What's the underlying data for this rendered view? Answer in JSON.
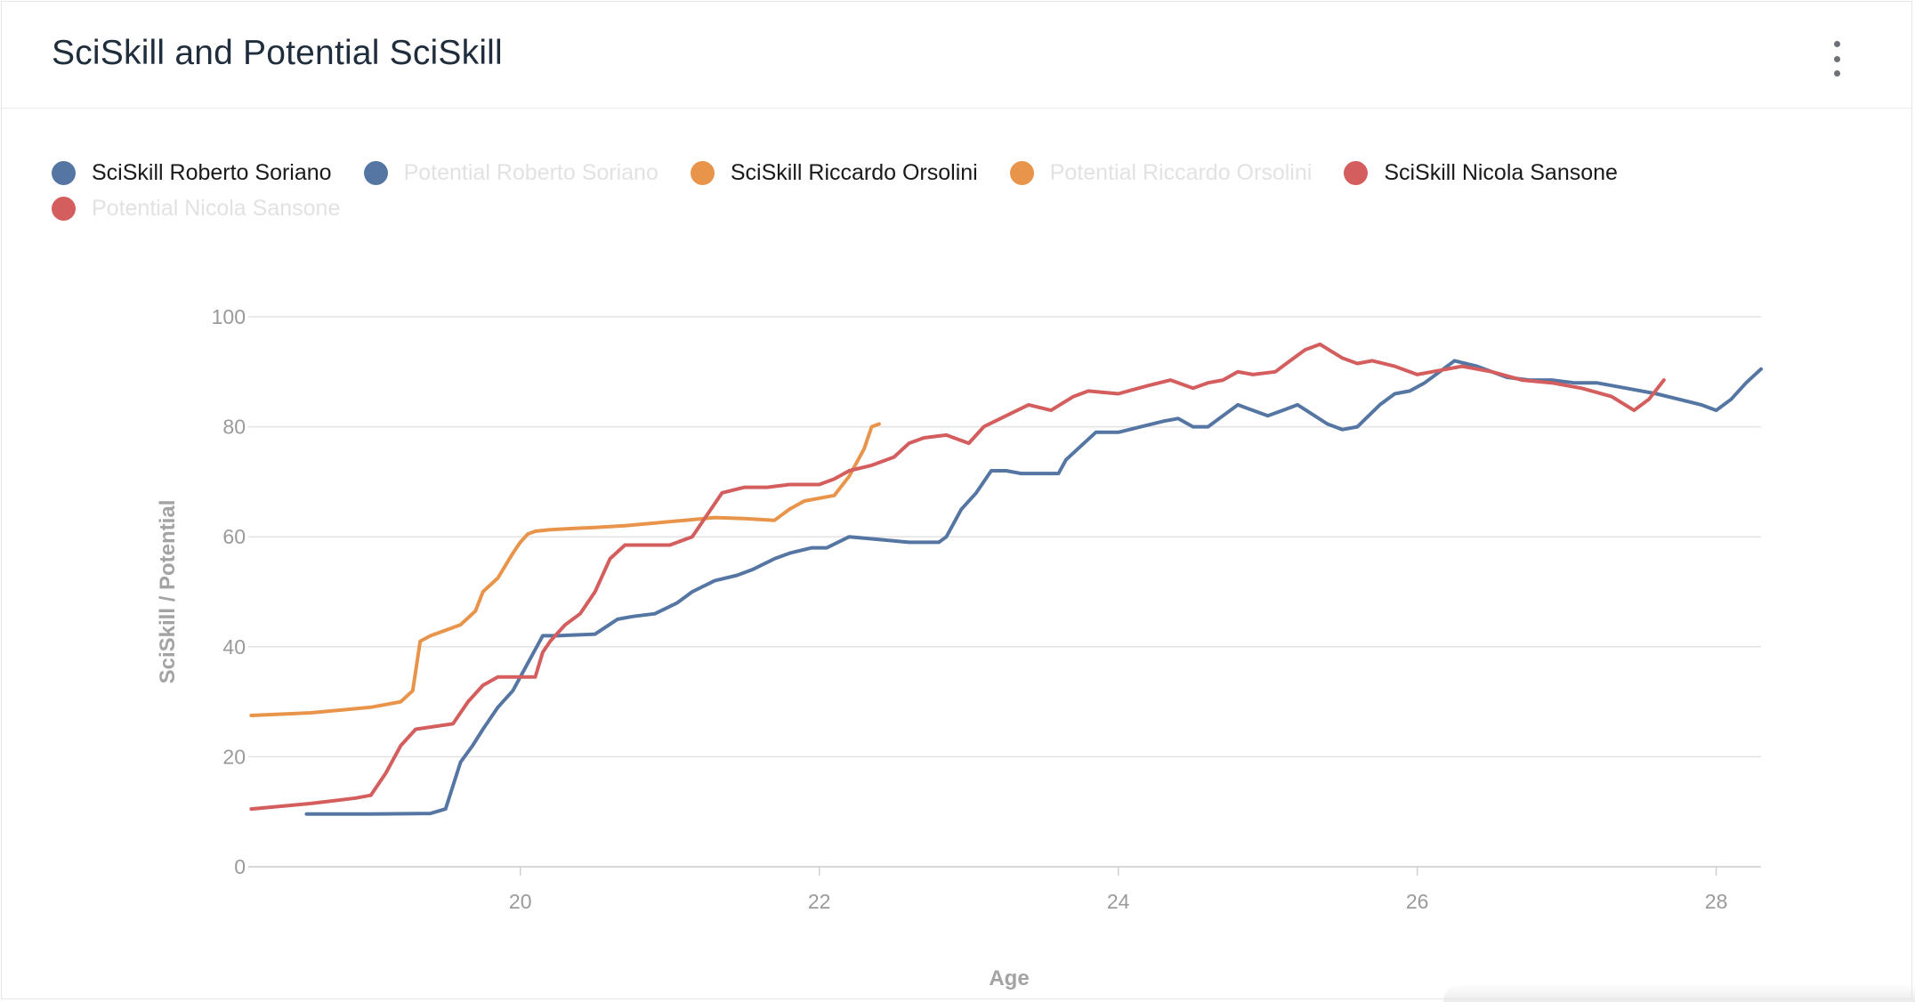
{
  "title": "SciSkill and Potential SciSkill",
  "menu_icon": "more-vertical-icon",
  "legend": [
    {
      "label": "SciSkill Roberto Soriano",
      "color": "#5576a3",
      "visible": true
    },
    {
      "label": "Potential Roberto Soriano",
      "color": "#5576a3",
      "visible": false
    },
    {
      "label": "SciSkill Riccardo Orsolini",
      "color": "#e8944a",
      "visible": true
    },
    {
      "label": "Potential Riccardo Orsolini",
      "color": "#e8944a",
      "visible": false
    },
    {
      "label": "SciSkill Nicola Sansone",
      "color": "#d45d5d",
      "visible": true
    },
    {
      "label": "Potential Nicola Sansone",
      "color": "#d45d5d",
      "visible": false
    }
  ],
  "chart_data": {
    "type": "line",
    "xlabel": "Age",
    "ylabel": "SciSkill / Potential",
    "xlim": [
      18.18,
      28.3
    ],
    "ylim": [
      0,
      100
    ],
    "x_ticks": [
      20,
      22,
      24,
      26,
      28
    ],
    "y_ticks": [
      0,
      20,
      40,
      60,
      80,
      100
    ],
    "grid": "horizontal",
    "legend_position": "top-left",
    "series": [
      {
        "name": "SciSkill Roberto Soriano",
        "color": "#5576a3",
        "x": [
          18.57,
          19.0,
          19.4,
          19.5,
          19.6,
          19.68,
          19.75,
          19.85,
          19.95,
          20.05,
          20.15,
          20.25,
          20.5,
          20.65,
          20.75,
          20.9,
          21.05,
          21.15,
          21.3,
          21.45,
          21.55,
          21.7,
          21.8,
          21.95,
          22.05,
          22.2,
          22.4,
          22.6,
          22.8,
          22.85,
          22.95,
          23.05,
          23.15,
          23.25,
          23.35,
          23.45,
          23.6,
          23.65,
          23.75,
          23.85,
          24.0,
          24.15,
          24.3,
          24.4,
          24.5,
          24.6,
          24.7,
          24.8,
          24.9,
          25.0,
          25.1,
          25.2,
          25.4,
          25.5,
          25.6,
          25.75,
          25.85,
          25.95,
          26.05,
          26.15,
          26.25,
          26.4,
          26.6,
          26.75,
          26.9,
          27.05,
          27.2,
          27.4,
          27.6,
          27.75,
          27.9,
          28.0,
          28.1,
          28.2,
          28.3
        ],
        "y": [
          9.6,
          9.6,
          9.7,
          10.5,
          19,
          22,
          25,
          29,
          32,
          37,
          42,
          42,
          42.3,
          45,
          45.5,
          46,
          48,
          50,
          52,
          53,
          54,
          56,
          57,
          58,
          58,
          60,
          59.5,
          59,
          59,
          60,
          65,
          68,
          72,
          72,
          71.5,
          71.5,
          71.5,
          74,
          76.5,
          79,
          79,
          80,
          81,
          81.5,
          80,
          80,
          82,
          84,
          83,
          82,
          83,
          84,
          80.5,
          79.5,
          80,
          84,
          86,
          86.5,
          88,
          90,
          92,
          91,
          89,
          88.5,
          88.5,
          88,
          88,
          87,
          86,
          85,
          84,
          83,
          85,
          88,
          90.5
        ]
      },
      {
        "name": "SciSkill Riccardo Orsolini",
        "color": "#e8944a",
        "x": [
          18.2,
          18.6,
          19.0,
          19.2,
          19.28,
          19.33,
          19.4,
          19.6,
          19.7,
          19.75,
          19.85,
          19.95,
          20.0,
          20.05,
          20.1,
          20.2,
          20.35,
          20.5,
          20.7,
          20.9,
          21.1,
          21.3,
          21.5,
          21.7,
          21.8,
          21.9,
          22.0,
          22.1,
          22.2,
          22.3,
          22.35,
          22.4
        ],
        "y": [
          27.5,
          28,
          29,
          30,
          32,
          41,
          42,
          44,
          46.5,
          50,
          52.5,
          57,
          59,
          60.5,
          61,
          61.3,
          61.5,
          61.7,
          62,
          62.5,
          63,
          63.5,
          63.3,
          63,
          65,
          66.5,
          67,
          67.5,
          71,
          76,
          80,
          80.5
        ]
      },
      {
        "name": "SciSkill Nicola Sansone",
        "color": "#d45d5d",
        "x": [
          18.2,
          18.6,
          18.9,
          19.0,
          19.1,
          19.2,
          19.3,
          19.55,
          19.65,
          19.75,
          19.85,
          20.1,
          20.15,
          20.2,
          20.3,
          20.4,
          20.5,
          20.6,
          20.7,
          21.0,
          21.15,
          21.25,
          21.35,
          21.5,
          21.65,
          21.8,
          22.0,
          22.1,
          22.2,
          22.35,
          22.5,
          22.6,
          22.7,
          22.85,
          23.0,
          23.1,
          23.25,
          23.4,
          23.55,
          23.7,
          23.8,
          24.0,
          24.2,
          24.35,
          24.5,
          24.6,
          24.7,
          24.8,
          24.9,
          25.05,
          25.15,
          25.25,
          25.35,
          25.5,
          25.6,
          25.7,
          25.85,
          26.0,
          26.1,
          26.3,
          26.5,
          26.7,
          26.9,
          27.1,
          27.3,
          27.45,
          27.55,
          27.65
        ],
        "y": [
          10.5,
          11.5,
          12.5,
          13,
          17,
          22,
          25,
          26,
          30,
          33,
          34.5,
          34.5,
          39,
          41,
          44,
          46,
          50,
          56,
          58.5,
          58.5,
          60,
          64,
          68,
          69,
          69,
          69.5,
          69.5,
          70.5,
          72,
          73,
          74.5,
          77,
          78,
          78.5,
          77,
          80,
          82,
          84,
          83,
          85.5,
          86.5,
          86,
          87.5,
          88.5,
          87,
          88,
          88.5,
          90,
          89.5,
          90,
          92,
          94,
          95,
          92.5,
          91.5,
          92,
          91,
          89.5,
          90,
          91,
          90,
          88.5,
          88,
          87,
          85.5,
          83,
          85,
          88.5
        ]
      }
    ]
  }
}
